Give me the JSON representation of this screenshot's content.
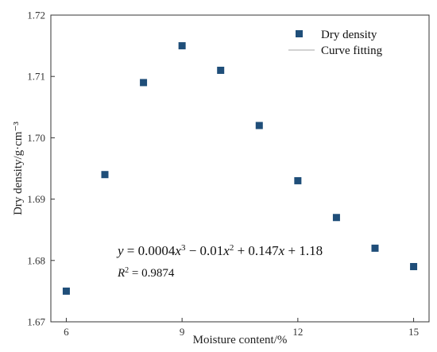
{
  "chart_data": {
    "type": "scatter",
    "xlabel": "Moisture content/%",
    "ylabel": "Dry density/g·cm⁻³",
    "xlim": [
      5.6,
      15.4
    ],
    "ylim": [
      1.67,
      1.72
    ],
    "x_ticks": [
      6,
      9,
      12,
      15
    ],
    "y_ticks": [
      1.67,
      1.68,
      1.69,
      1.7,
      1.71,
      1.72
    ],
    "x_tick_labels": [
      "6",
      "9",
      "12",
      "15"
    ],
    "y_tick_labels": [
      "1.67",
      "1.68",
      "1.69",
      "1.70",
      "1.71",
      "1.72"
    ],
    "grid": false,
    "legend_position": "top-right",
    "series": [
      {
        "name": "Dry density",
        "kind": "points",
        "color": "#1f4e79",
        "x": [
          6,
          7,
          8,
          9,
          10,
          11,
          12,
          13,
          14,
          15
        ],
        "y": [
          1.675,
          1.694,
          1.709,
          1.715,
          1.711,
          1.702,
          1.693,
          1.687,
          1.682,
          1.679
        ]
      },
      {
        "name": "Curve fitting",
        "kind": "line",
        "color": "#b8b8b8",
        "coefficients": [
          0.0004,
          -0.01,
          0.147,
          1.18
        ]
      }
    ],
    "annotations": {
      "equation": "y = 0.0004x³ − 0.01x² + 0.147x + 1.18",
      "r_squared": "R² = 0.9874"
    }
  },
  "labels": {
    "xlabel": "Moisture content/%",
    "ylabel": "Dry density/g·cm⁻³",
    "legend_dry_density": "Dry density",
    "legend_curve_fitting": "Curve fitting",
    "eq_coef1": "0.0004",
    "eq_coef2": "0.01",
    "eq_coef3": "0.147",
    "eq_const": "1.18",
    "r2_value": "0.9874"
  }
}
